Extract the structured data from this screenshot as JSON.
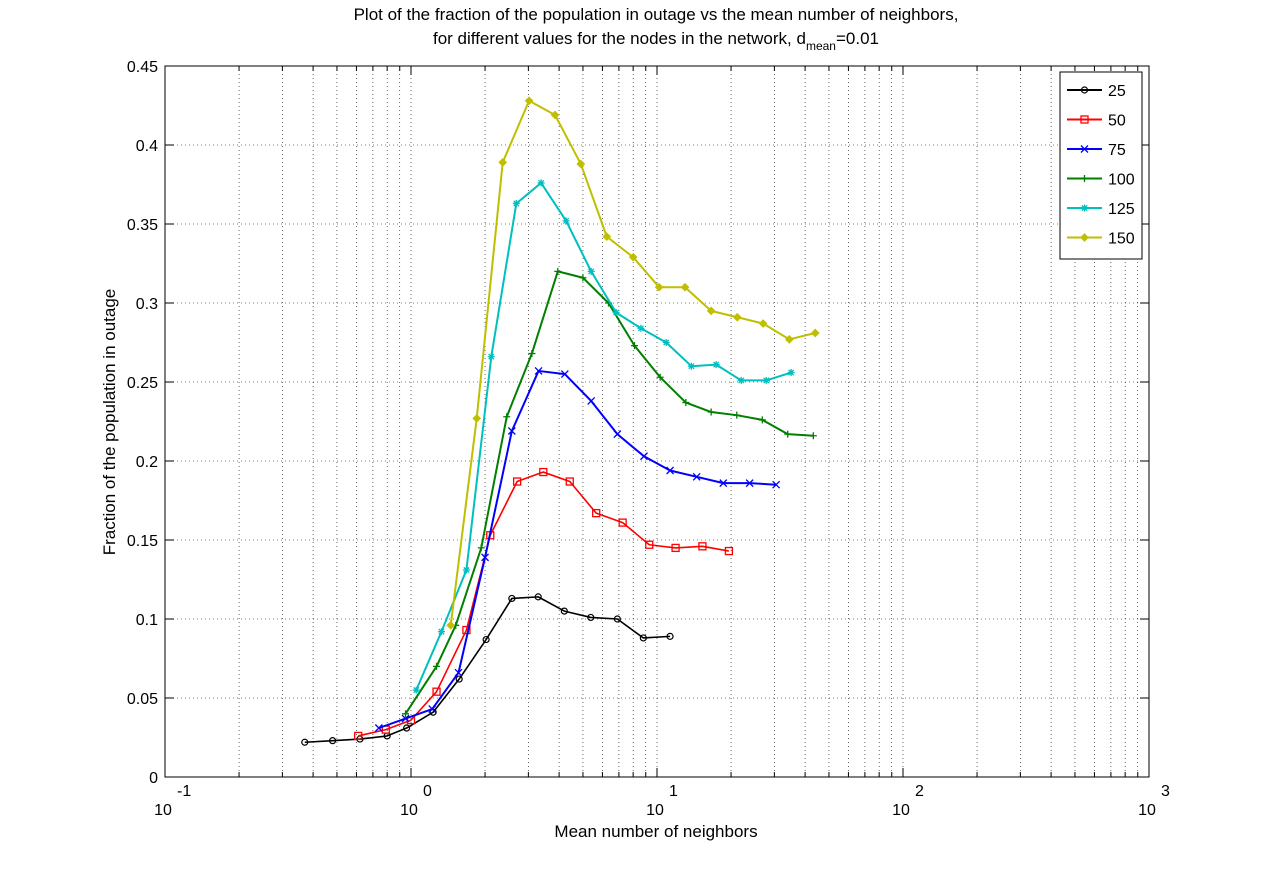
{
  "chart_data": {
    "type": "line",
    "title_line1": "Plot of the fraction of the population in outage vs the mean number of neighbors,",
    "title_line2_prefix": "for different values for the nodes in the network, d",
    "title_subscript": "mean",
    "title_suffix": "=0.01",
    "xlabel": "Mean number of neighbors",
    "ylabel": "Fraction of the population in outage",
    "xscale": "log",
    "xlim": [
      0.1,
      1000
    ],
    "ylim": [
      0,
      0.45
    ],
    "grid": true,
    "legend_position": "top-right",
    "x_ticks": [
      {
        "base": "10",
        "exp": "-1"
      },
      {
        "base": "10",
        "exp": "0"
      },
      {
        "base": "10",
        "exp": "1"
      },
      {
        "base": "10",
        "exp": "2"
      },
      {
        "base": "10",
        "exp": "3"
      }
    ],
    "y_ticks": [
      "0",
      "0.05",
      "0.1",
      "0.15",
      "0.2",
      "0.25",
      "0.3",
      "0.35",
      "0.4",
      "0.45"
    ],
    "series": [
      {
        "name": "25",
        "color": "#000000",
        "marker": "circle",
        "x": [
          0.37,
          0.48,
          0.62,
          0.8,
          0.96,
          1.23,
          1.57,
          2.02,
          2.57,
          3.29,
          4.2,
          5.38,
          6.9,
          8.8,
          11.3,
          14.4,
          18.5
        ],
        "y": [
          0.022,
          0.023,
          0.024,
          0.026,
          0.031,
          0.041,
          0.062,
          0.087,
          0.113,
          0.114,
          0.105,
          0.101,
          0.1,
          0.088,
          0.089,
          null,
          null
        ]
      },
      {
        "name": "50",
        "color": "#ff0000",
        "marker": "square",
        "x": [
          0.61,
          0.79,
          1.0,
          1.27,
          1.68,
          2.1,
          2.7,
          3.45,
          4.42,
          5.66,
          7.25,
          9.3,
          11.9,
          15.3,
          19.6,
          25.0
        ],
        "y": [
          0.026,
          0.03,
          0.036,
          0.054,
          0.093,
          0.153,
          0.187,
          0.193,
          0.187,
          0.167,
          0.161,
          0.147,
          0.145,
          0.146,
          0.143,
          null
        ]
      },
      {
        "name": "75",
        "color": "#0000ff",
        "marker": "x",
        "x": [
          0.74,
          0.95,
          1.22,
          1.56,
          2.0,
          2.57,
          3.3,
          4.22,
          5.4,
          6.9,
          8.85,
          11.3,
          14.5,
          18.6,
          23.8,
          30.5,
          39.0
        ],
        "y": [
          0.031,
          0.037,
          0.043,
          0.066,
          0.139,
          0.219,
          0.257,
          0.255,
          0.238,
          0.217,
          0.203,
          0.194,
          0.19,
          0.186,
          0.186,
          0.185,
          null
        ]
      },
      {
        "name": "100",
        "color": "#007f00",
        "marker": "plus",
        "x": [
          0.95,
          1.27,
          1.52,
          1.93,
          2.45,
          3.1,
          3.95,
          5.0,
          6.35,
          8.1,
          10.3,
          13.1,
          16.6,
          21.1,
          26.8,
          34.0,
          43.2
        ],
        "y": [
          0.04,
          0.07,
          0.096,
          0.145,
          0.228,
          0.268,
          0.32,
          0.316,
          0.3,
          0.273,
          0.253,
          0.237,
          0.231,
          0.229,
          0.226,
          0.217,
          0.216
        ]
      },
      {
        "name": "125",
        "color": "#00bfbf",
        "marker": "star",
        "x": [
          1.05,
          1.33,
          1.68,
          2.12,
          2.68,
          3.38,
          4.27,
          5.4,
          6.82,
          8.6,
          10.9,
          13.8,
          17.4,
          22.0,
          27.8,
          35.1,
          44.3,
          56.0
        ],
        "y": [
          0.055,
          0.092,
          0.131,
          0.266,
          0.363,
          0.376,
          0.352,
          0.32,
          0.294,
          0.284,
          0.275,
          0.26,
          0.261,
          0.251,
          0.251,
          0.256,
          null,
          null
        ]
      },
      {
        "name": "150",
        "color": "#bfbf00",
        "marker": "diamond",
        "x": [
          1.45,
          1.85,
          2.36,
          3.02,
          3.85,
          4.9,
          6.25,
          8.0,
          10.2,
          13.0,
          16.6,
          21.2,
          27.0,
          34.5,
          44.0,
          56.0,
          71.5,
          91.0,
          116.0,
          148.0
        ],
        "y": [
          0.096,
          0.227,
          0.389,
          0.428,
          0.419,
          0.388,
          0.342,
          0.329,
          0.31,
          0.31,
          0.295,
          0.291,
          0.287,
          0.277,
          0.281,
          null,
          null,
          null,
          null,
          null
        ]
      }
    ]
  }
}
